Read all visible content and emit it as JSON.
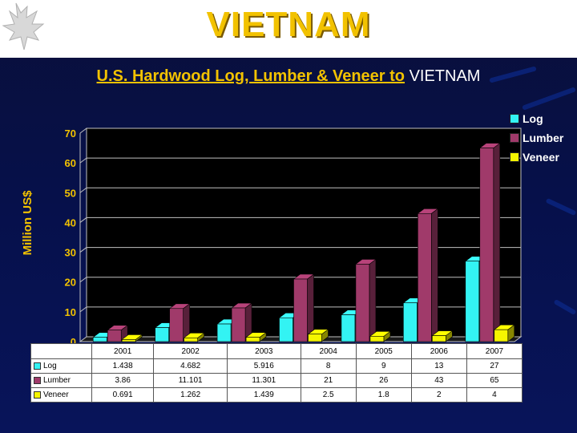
{
  "slide": {
    "title": "VIETNAM",
    "subtitle_main": "U.S. Hardwood Log, Lumber & Veneer to",
    "subtitle_country": "VIETNAM"
  },
  "colors": {
    "log": "#33f3f3",
    "lumber": "#a03a6a",
    "veneer": "#f5f500",
    "title": "#f2c200"
  },
  "chart_data": {
    "type": "bar",
    "categories": [
      "2001",
      "2002",
      "2003",
      "2004",
      "2005",
      "2006",
      "2007"
    ],
    "series": [
      {
        "name": "Log",
        "values": [
          1.438,
          4.682,
          5.916,
          8,
          9,
          13,
          27
        ]
      },
      {
        "name": "Lumber",
        "values": [
          3.86,
          11.101,
          11.301,
          21,
          26,
          43,
          65
        ]
      },
      {
        "name": "Veneer",
        "values": [
          0.691,
          1.262,
          1.439,
          2.5,
          1.8,
          2,
          4
        ]
      }
    ],
    "value_labels": [
      [
        "1.438",
        "4.682",
        "5.916",
        "8",
        "9",
        "13",
        "27"
      ],
      [
        "3.86",
        "11.101",
        "11.301",
        "21",
        "26",
        "43",
        "65"
      ],
      [
        "0.691",
        "1.262",
        "1.439",
        "2.5",
        "1.8",
        "2",
        "4"
      ]
    ],
    "ylabel": "Million US$",
    "ylim": [
      0,
      70
    ],
    "yticks": [
      "0",
      "10",
      "20",
      "30",
      "40",
      "50",
      "60",
      "70"
    ],
    "grid": true,
    "legend": "right",
    "data_table": true
  }
}
